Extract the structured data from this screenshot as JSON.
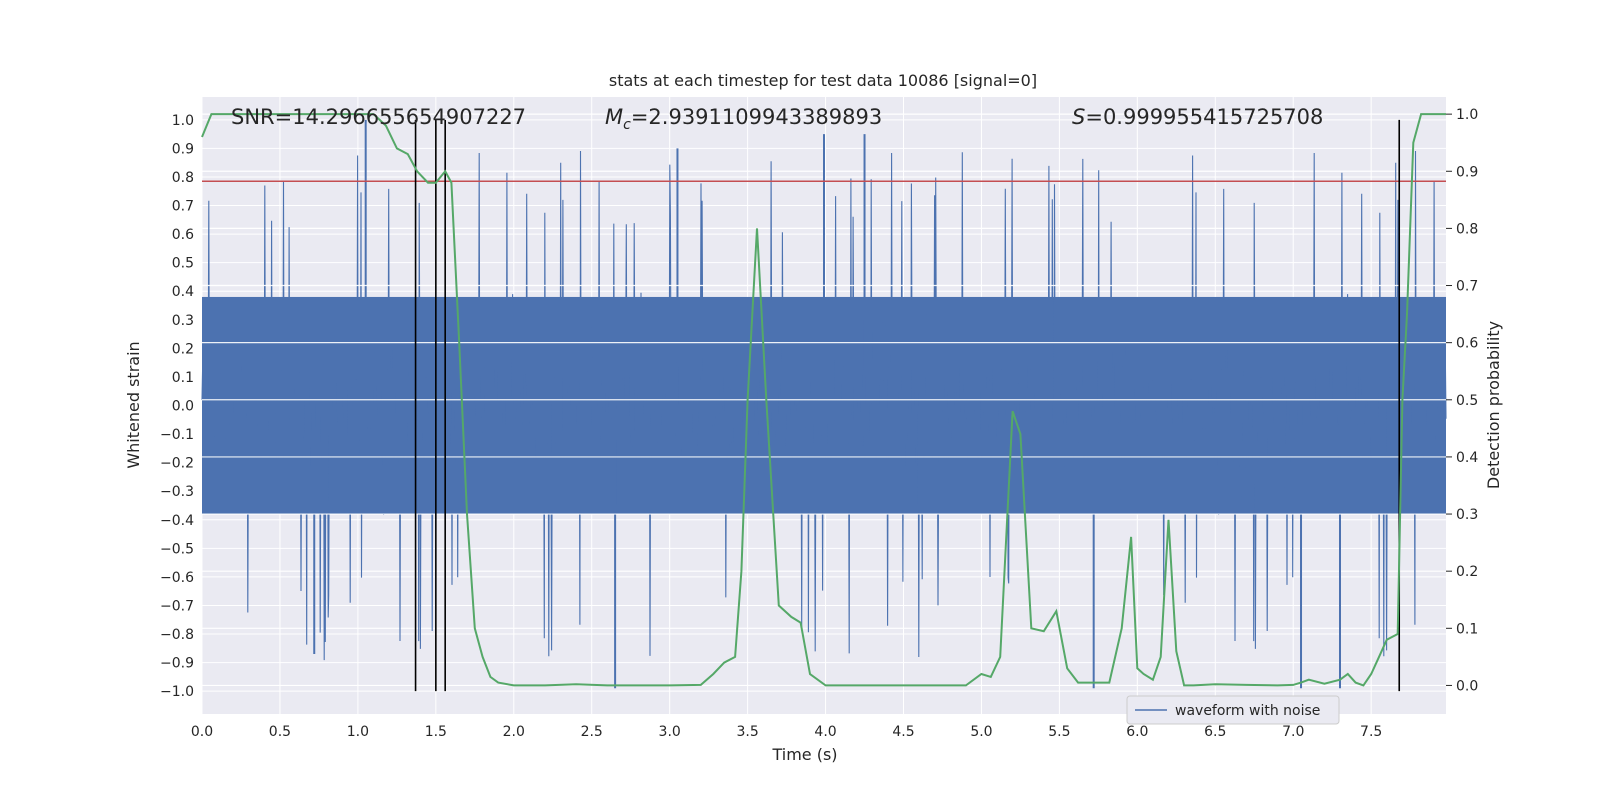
{
  "chart_data": {
    "type": "line",
    "title": "stats at each timestep for test data 10086 [signal=0]",
    "xlabel": "Time (s)",
    "ylabel": "Whitened strain",
    "y2label": "Detection probability",
    "xlim": [
      0.0,
      7.98
    ],
    "ylim": [
      -1.08,
      1.08
    ],
    "y2lim": [
      -0.05,
      1.03
    ],
    "x_ticks": [
      0.0,
      0.5,
      1.0,
      1.5,
      2.0,
      2.5,
      3.0,
      3.5,
      4.0,
      4.5,
      5.0,
      5.5,
      6.0,
      6.5,
      7.0,
      7.5
    ],
    "x_tick_labels": [
      "0.0",
      "0.5",
      "1.0",
      "1.5",
      "2.0",
      "2.5",
      "3.0",
      "3.5",
      "4.0",
      "4.5",
      "5.0",
      "5.5",
      "6.0",
      "6.5",
      "7.0",
      "7.5"
    ],
    "y_ticks": [
      1.0,
      0.9,
      0.8,
      0.7,
      0.6,
      0.5,
      0.4,
      0.3,
      0.2,
      0.1,
      0.0,
      -0.1,
      -0.2,
      -0.3,
      -0.4,
      -0.5,
      -0.6,
      -0.7,
      -0.8,
      -0.9,
      -1.0
    ],
    "y_tick_labels": [
      "1.0",
      "0.9",
      "0.8",
      "0.7",
      "0.6",
      "0.5",
      "0.4",
      "0.3",
      "0.2",
      "0.1",
      "0.0",
      "−0.1",
      "−0.2",
      "−0.3",
      "−0.4",
      "−0.5",
      "−0.6",
      "−0.7",
      "−0.8",
      "−0.9",
      "−1.0"
    ],
    "y2_ticks": [
      1.0,
      0.9,
      0.8,
      0.7,
      0.6,
      0.5,
      0.4,
      0.3,
      0.2,
      0.1,
      0.0
    ],
    "y2_tick_labels": [
      "1.0",
      "0.9",
      "0.8",
      "0.7",
      "0.6",
      "0.5",
      "0.4",
      "0.3",
      "0.2",
      "0.1",
      "0.0"
    ],
    "grid": true,
    "legend": {
      "position": "bottom-right",
      "entries": [
        "waveform with noise"
      ]
    },
    "annotations": {
      "snr": "SNR=14.296655654907227",
      "mc_symbol": "M",
      "mc_sub": "c",
      "mc_value": "=2.9391109943389893",
      "s_symbol": "S",
      "s_value": "=0.999955415725708"
    },
    "threshold": {
      "axis": "y",
      "value": 0.785,
      "color": "#c44e52"
    },
    "vertical_markers": [
      1.37,
      1.5,
      1.56,
      7.68
    ],
    "waveform": {
      "name": "waveform with noise",
      "color": "#4c72b0",
      "approx_envelope_peaks": [
        [
          1.05,
          1.0
        ],
        [
          3.05,
          0.9
        ],
        [
          3.99,
          0.95
        ],
        [
          4.25,
          0.95
        ],
        [
          0.72,
          -0.87
        ],
        [
          2.65,
          -0.99
        ],
        [
          5.72,
          -0.99
        ],
        [
          7.05,
          -0.99
        ],
        [
          7.3,
          -0.99
        ]
      ]
    },
    "series": [
      {
        "name": "Detection probability",
        "axis": "y2",
        "color": "#55a868",
        "x": [
          0.0,
          0.06,
          0.2,
          0.4,
          0.6,
          0.8,
          1.0,
          1.1,
          1.18,
          1.25,
          1.32,
          1.38,
          1.45,
          1.5,
          1.56,
          1.6,
          1.65,
          1.7,
          1.75,
          1.8,
          1.85,
          1.9,
          2.0,
          2.2,
          2.4,
          2.6,
          2.8,
          3.0,
          3.2,
          3.28,
          3.35,
          3.42,
          3.46,
          3.5,
          3.56,
          3.62,
          3.7,
          3.78,
          3.84,
          3.9,
          4.0,
          4.2,
          4.4,
          4.6,
          4.8,
          4.9,
          5.0,
          5.06,
          5.12,
          5.2,
          5.25,
          5.32,
          5.4,
          5.48,
          5.55,
          5.62,
          5.72,
          5.82,
          5.9,
          5.96,
          6.0,
          6.04,
          6.1,
          6.15,
          6.2,
          6.25,
          6.3,
          6.36,
          6.5,
          6.7,
          6.9,
          7.0,
          7.05,
          7.1,
          7.2,
          7.3,
          7.35,
          7.4,
          7.45,
          7.5,
          7.55,
          7.6,
          7.67,
          7.7,
          7.73,
          7.77,
          7.82,
          7.88,
          7.98
        ],
        "values": [
          0.96,
          1.0,
          1.0,
          1.0,
          1.0,
          1.0,
          1.0,
          1.0,
          0.98,
          0.94,
          0.93,
          0.9,
          0.88,
          0.88,
          0.9,
          0.88,
          0.6,
          0.3,
          0.1,
          0.05,
          0.015,
          0.005,
          0.0,
          0.0,
          0.002,
          0.0,
          0.0,
          0.0,
          0.001,
          0.02,
          0.04,
          0.05,
          0.2,
          0.5,
          0.8,
          0.5,
          0.14,
          0.12,
          0.11,
          0.02,
          0.0,
          0.0,
          0.0,
          0.0,
          0.0,
          0.0,
          0.02,
          0.015,
          0.05,
          0.48,
          0.44,
          0.1,
          0.095,
          0.13,
          0.03,
          0.005,
          0.005,
          0.005,
          0.1,
          0.26,
          0.03,
          0.02,
          0.01,
          0.05,
          0.29,
          0.06,
          0.0,
          0.0,
          0.002,
          0.001,
          0.0,
          0.001,
          0.005,
          0.01,
          0.003,
          0.01,
          0.02,
          0.005,
          0.0,
          0.02,
          0.05,
          0.08,
          0.09,
          0.5,
          0.65,
          0.95,
          1.0,
          1.0,
          1.0
        ]
      }
    ]
  }
}
